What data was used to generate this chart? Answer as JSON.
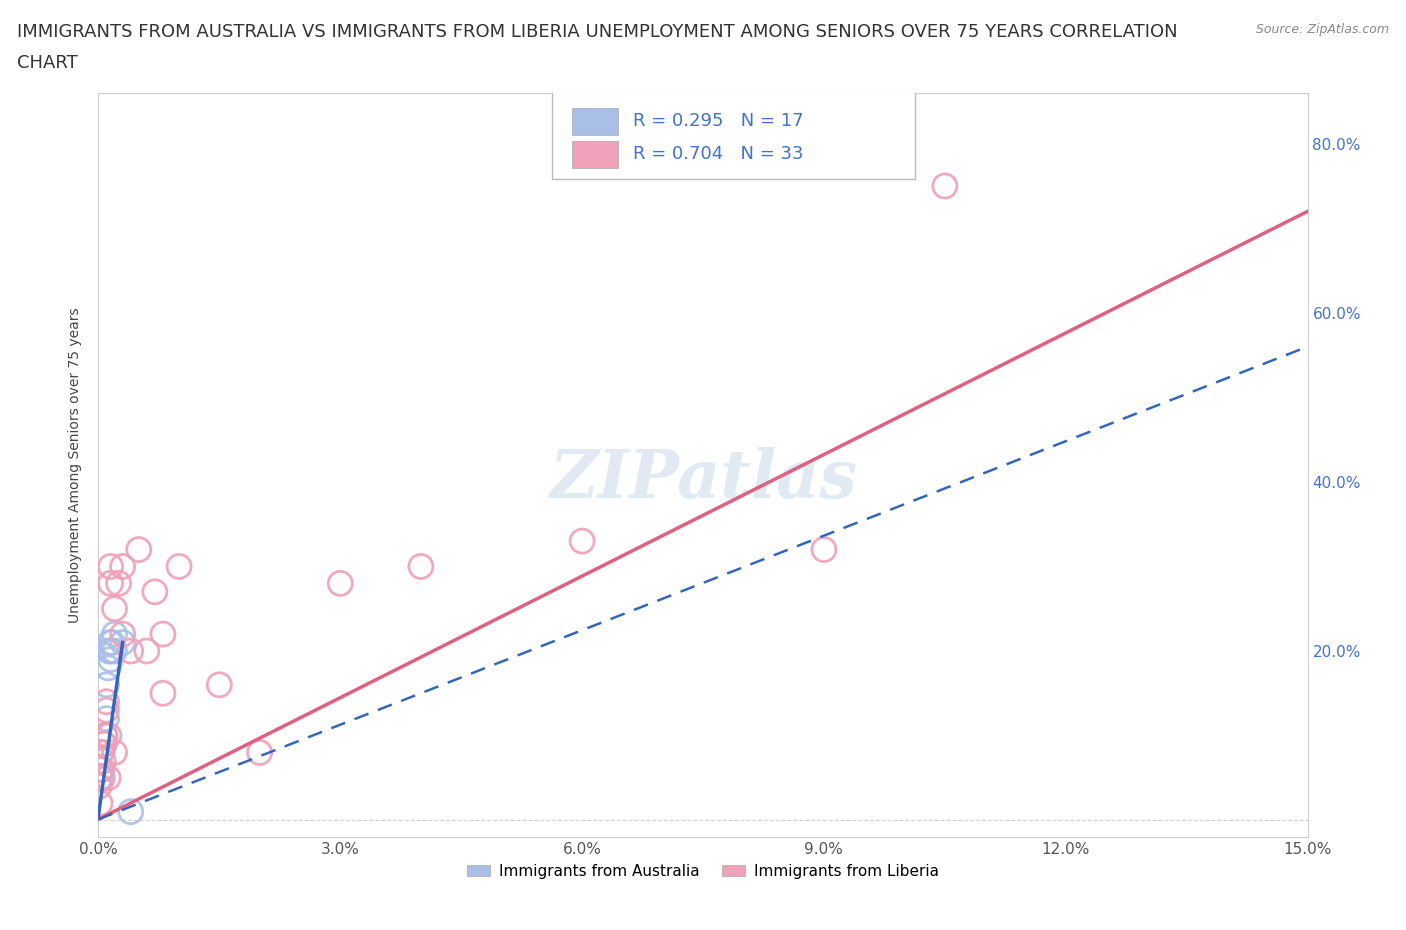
{
  "title_line1": "IMMIGRANTS FROM AUSTRALIA VS IMMIGRANTS FROM LIBERIA UNEMPLOYMENT AMONG SENIORS OVER 75 YEARS CORRELATION",
  "title_line2": "CHART",
  "source": "Source: ZipAtlas.com",
  "ylabel": "Unemployment Among Seniors over 75 years",
  "australia_color": "#aabfe8",
  "australia_line_color": "#3366bb",
  "liberia_color": "#f0a0b8",
  "liberia_line_color": "#e06080",
  "R_aus": 0.295,
  "N_aus": 17,
  "R_lib": 0.704,
  "N_lib": 33,
  "xlim": [
    0.0,
    0.15
  ],
  "ylim": [
    -0.02,
    0.86
  ],
  "x_ticks": [
    0.0,
    0.03,
    0.06,
    0.09,
    0.12,
    0.15
  ],
  "x_tick_labels": [
    "0.0%",
    "3.0%",
    "6.0%",
    "9.0%",
    "12.0%",
    "15.0%"
  ],
  "y_ticks_left": [
    0.0
  ],
  "y_tick_labels_left": [
    ""
  ],
  "right_y_ticks": [
    0.2,
    0.4,
    0.6,
    0.8
  ],
  "right_y_tick_labels": [
    "20.0%",
    "40.0%",
    "60.0%",
    "80.0%"
  ],
  "grid_color": "#cccccc",
  "legend_color": "#4472c4",
  "watermark": "ZIPatlas",
  "title_fontsize": 13,
  "tick_fontsize": 11,
  "legend_fontsize": 13,
  "australia_aus_x": [
    0.0002,
    0.0003,
    0.0005,
    0.0007,
    0.0008,
    0.001,
    0.001,
    0.0012,
    0.0013,
    0.0014,
    0.0015,
    0.0016,
    0.0017,
    0.002,
    0.002,
    0.003,
    0.004
  ],
  "australia_aus_y": [
    0.05,
    0.08,
    0.06,
    0.09,
    0.1,
    0.12,
    0.16,
    0.18,
    0.2,
    0.21,
    0.19,
    0.2,
    0.21,
    0.22,
    0.2,
    0.21,
    0.01
  ],
  "liberia_lib_x": [
    0.0001,
    0.0002,
    0.0003,
    0.0004,
    0.0005,
    0.0006,
    0.0007,
    0.0008,
    0.001,
    0.001,
    0.0012,
    0.0013,
    0.0015,
    0.0015,
    0.002,
    0.002,
    0.0025,
    0.003,
    0.003,
    0.004,
    0.005,
    0.006,
    0.007,
    0.008,
    0.008,
    0.01,
    0.015,
    0.02,
    0.03,
    0.04,
    0.06,
    0.09,
    0.105
  ],
  "liberia_lib_y": [
    0.04,
    0.02,
    0.06,
    0.08,
    0.05,
    0.07,
    0.09,
    0.1,
    0.13,
    0.14,
    0.05,
    0.1,
    0.28,
    0.3,
    0.08,
    0.25,
    0.28,
    0.22,
    0.3,
    0.2,
    0.32,
    0.2,
    0.27,
    0.15,
    0.22,
    0.3,
    0.16,
    0.08,
    0.28,
    0.3,
    0.33,
    0.32,
    0.75
  ],
  "aus_trend_x0": 0.0,
  "aus_trend_y0": 0.001,
  "aus_trend_x1": 0.15,
  "aus_trend_y1": 0.56,
  "lib_trend_x0": 0.0,
  "lib_trend_y0": 0.001,
  "lib_trend_x1": 0.15,
  "lib_trend_y1": 0.72
}
